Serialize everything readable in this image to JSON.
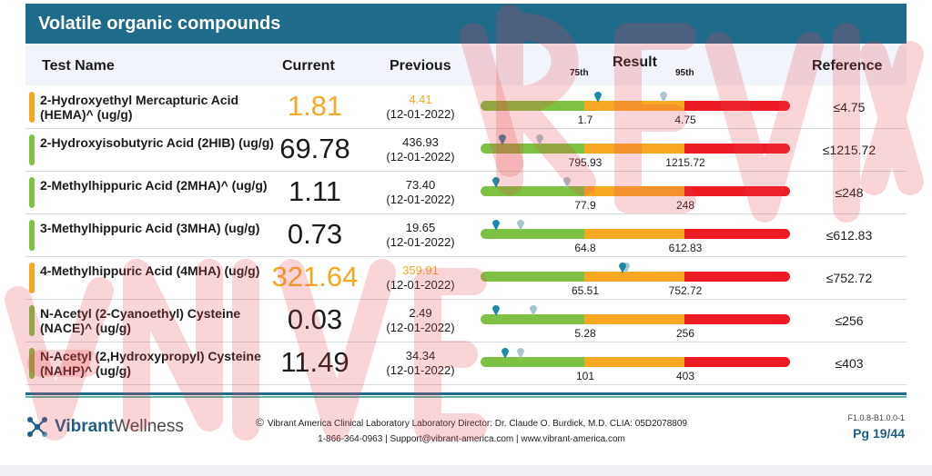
{
  "section_title": "Volatile organic compounds",
  "headers": {
    "test_name": "Test Name",
    "current": "Current",
    "previous": "Previous",
    "result": "Result",
    "p75": "75th",
    "p95": "95th",
    "reference": "Reference"
  },
  "rows": [
    {
      "name": "2-Hydroxyethyl Mercapturic Acid (HEMA)^ (ug/g)",
      "current": "1.81",
      "previous": "4.41",
      "previous_date": "(12-01-2022)",
      "p75": "1.7",
      "p95": "4.75",
      "reference": "≤4.75",
      "status": "moderate",
      "flag_color": "#f7a823",
      "current_color": "#f7a823",
      "previous_color": "#f7a823"
    },
    {
      "name": "2-Hydroxyisobutyric Acid (2HIB) (ug/g)",
      "current": "69.78",
      "previous": "436.93",
      "previous_date": "(12-01-2022)",
      "p75": "795.93",
      "p95": "1215.72",
      "reference": "≤1215.72",
      "status": "normal",
      "flag_color": "#7dc242",
      "current_color": "#1b1b1b",
      "previous_color": "#1b1b1b"
    },
    {
      "name": "2-Methylhippuric Acid (2MHA)^ (ug/g)",
      "current": "1.11",
      "previous": "73.40",
      "previous_date": "(12-01-2022)",
      "p75": "77.9",
      "p95": "248",
      "reference": "≤248",
      "status": "normal",
      "flag_color": "#7dc242",
      "current_color": "#1b1b1b",
      "previous_color": "#1b1b1b"
    },
    {
      "name": "3-Methylhippuric Acid (3MHA) (ug/g)",
      "current": "0.73",
      "previous": "19.65",
      "previous_date": "(12-01-2022)",
      "p75": "64.8",
      "p95": "612.83",
      "reference": "≤612.83",
      "status": "normal",
      "flag_color": "#7dc242",
      "current_color": "#1b1b1b",
      "previous_color": "#1b1b1b"
    },
    {
      "name": "4-Methylhippuric Acid (4MHA) (ug/g)",
      "current": "321.64",
      "previous": "359.91",
      "previous_date": "(12-01-2022)",
      "p75": "65.51",
      "p95": "752.72",
      "reference": "≤752.72",
      "status": "moderate",
      "flag_color": "#f7a823",
      "current_color": "#f7a823",
      "previous_color": "#f7a823"
    },
    {
      "name": "N-Acetyl (2-Cyanoethyl) Cysteine (NACE)^ (ug/g)",
      "current": "0.03",
      "previous": "2.49",
      "previous_date": "(12-01-2022)",
      "p75": "5.28",
      "p95": "256",
      "reference": "≤256",
      "status": "normal",
      "flag_color": "#7dc242",
      "current_color": "#1b1b1b",
      "previous_color": "#1b1b1b"
    },
    {
      "name": "N-Acetyl (2,Hydroxypropyl) Cysteine (NAHP)^ (ug/g)",
      "current": "11.49",
      "previous": "34.34",
      "previous_date": "(12-01-2022)",
      "p75": "101",
      "p95": "403",
      "reference": "≤403",
      "status": "normal",
      "flag_color": "#7dc242",
      "current_color": "#1b1b1b",
      "previous_color": "#1b1b1b"
    }
  ],
  "markers": [
    {
      "current_pos": 0.38,
      "previous_pos": 0.59
    },
    {
      "current_pos": 0.07,
      "previous_pos": 0.19
    },
    {
      "current_pos": 0.05,
      "previous_pos": 0.28
    },
    {
      "current_pos": 0.05,
      "previous_pos": 0.13
    },
    {
      "current_pos": 0.46,
      "previous_pos": 0.47
    },
    {
      "current_pos": 0.05,
      "previous_pos": 0.17
    },
    {
      "current_pos": 0.08,
      "previous_pos": 0.13
    }
  ],
  "marker_colors": {
    "current": "#1a8aa8",
    "previous": "#a8c4cc"
  },
  "footer": {
    "logo_bold": "Vibrant",
    "logo_light": "Wellness",
    "copyright_line": "Vibrant America Clinical Laboratory Laboratory Director: Dr. Claude O. Burdick, M.D. CLIA: 05D2078809",
    "copyright_symbol": "©",
    "contact_line": "1-866-364-0963 | Support@vibrant-america.com | www.vibrant-america.com",
    "doc_code": "F1.0.8-B1.0.0-1",
    "page": "Pg 19/44"
  }
}
